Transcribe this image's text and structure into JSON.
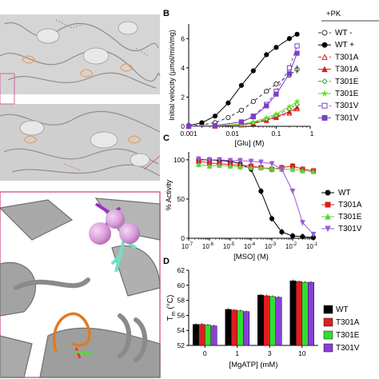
{
  "panel_letters": {
    "b": "B",
    "c": "C",
    "d": "D"
  },
  "chart_data": [
    {
      "id": "B",
      "type": "line",
      "x_scale": "log",
      "xlabel": "[Glu] (M)",
      "ylabel": "Initial velocity (µmol/min/mg)",
      "xlim": [
        0.001,
        0.6
      ],
      "ylim": [
        0,
        7
      ],
      "xticks": [
        {
          "v": 0.001,
          "label": "0.001"
        },
        {
          "v": 0.01,
          "label": "0.01"
        },
        {
          "v": 0.1,
          "label": "0.1"
        },
        {
          "v": 1,
          "label": "1"
        }
      ],
      "yticks": [
        {
          "v": 0,
          "label": "0"
        },
        {
          "v": 2,
          "label": "2"
        },
        {
          "v": 4,
          "label": "4"
        },
        {
          "v": 6,
          "label": "6"
        }
      ],
      "legend_header": "+PK",
      "series": [
        {
          "name": "WT -",
          "color": "#333333",
          "marker": "circle-open",
          "dash": "4,3",
          "x": [
            0.001,
            0.002,
            0.004,
            0.008,
            0.016,
            0.03,
            0.06,
            0.1,
            0.2,
            0.3
          ],
          "y": [
            0.02,
            0.1,
            0.25,
            0.6,
            1.1,
            1.7,
            2.4,
            2.9,
            3.5,
            3.9
          ]
        },
        {
          "name": "WT +",
          "color": "#000000",
          "marker": "circle-filled",
          "dash": "",
          "x": [
            0.001,
            0.002,
            0.004,
            0.008,
            0.016,
            0.03,
            0.06,
            0.1,
            0.2,
            0.3
          ],
          "y": [
            0.05,
            0.25,
            0.7,
            1.6,
            2.8,
            3.8,
            4.9,
            5.4,
            6.0,
            6.3
          ]
        },
        {
          "name": "T301A",
          "color": "#d42020",
          "marker": "triangle-open",
          "dash": "4,3",
          "x": [
            0.001,
            0.004,
            0.016,
            0.03,
            0.06,
            0.1,
            0.2,
            0.3
          ],
          "y": [
            0.0,
            0.02,
            0.1,
            0.2,
            0.4,
            0.6,
            0.9,
            1.2
          ]
        },
        {
          "name": "T301A",
          "color": "#d42020",
          "marker": "triangle-filled",
          "dash": "",
          "x": [
            0.001,
            0.004,
            0.016,
            0.03,
            0.06,
            0.1,
            0.2,
            0.3
          ],
          "y": [
            0.0,
            0.02,
            0.1,
            0.22,
            0.42,
            0.65,
            1.0,
            1.3
          ]
        },
        {
          "name": "T301E",
          "color": "#2e9e2e",
          "marker": "diamond-open",
          "dash": "4,3",
          "x": [
            0.001,
            0.004,
            0.016,
            0.03,
            0.06,
            0.1,
            0.2,
            0.3
          ],
          "y": [
            0.0,
            0.02,
            0.12,
            0.25,
            0.5,
            0.75,
            1.2,
            1.5
          ]
        },
        {
          "name": "T301E",
          "color": "#66dd22",
          "marker": "star",
          "dash": "",
          "x": [
            0.001,
            0.004,
            0.016,
            0.03,
            0.06,
            0.1,
            0.2,
            0.3
          ],
          "y": [
            0.0,
            0.03,
            0.15,
            0.3,
            0.58,
            0.85,
            1.35,
            1.7
          ]
        },
        {
          "name": "T301V",
          "color": "#7b3fc8",
          "marker": "square-open",
          "dash": "4,3",
          "x": [
            0.001,
            0.004,
            0.016,
            0.03,
            0.06,
            0.1,
            0.2,
            0.3
          ],
          "y": [
            0.0,
            0.05,
            0.3,
            0.7,
            1.5,
            2.4,
            4.0,
            5.5
          ]
        },
        {
          "name": "T301V",
          "color": "#7b3fc8",
          "marker": "square-filled",
          "dash": "",
          "x": [
            0.001,
            0.004,
            0.016,
            0.03,
            0.06,
            0.1,
            0.2,
            0.3
          ],
          "y": [
            0.0,
            0.05,
            0.3,
            0.65,
            1.4,
            2.2,
            3.6,
            5.0
          ]
        }
      ]
    },
    {
      "id": "C",
      "type": "line",
      "x_scale": "log",
      "xlabel": "[MSO] (M)",
      "ylabel": "% Activity",
      "xlim": [
        1e-07,
        0.1
      ],
      "ylim": [
        0,
        110
      ],
      "xticks": [
        {
          "v": 1e-07,
          "base": "10",
          "exp": "-7"
        },
        {
          "v": 1e-06,
          "base": "10",
          "exp": "-6"
        },
        {
          "v": 1e-05,
          "base": "10",
          "exp": "-5"
        },
        {
          "v": 0.0001,
          "base": "10",
          "exp": "-4"
        },
        {
          "v": 0.001,
          "base": "10",
          "exp": "-3"
        },
        {
          "v": 0.01,
          "base": "10",
          "exp": "-2"
        },
        {
          "v": 0.1,
          "base": "10",
          "exp": "-1"
        }
      ],
      "yticks": [
        {
          "v": 0,
          "label": "0"
        },
        {
          "v": 50,
          "label": "50"
        },
        {
          "v": 100,
          "label": "100"
        }
      ],
      "series": [
        {
          "name": "WT",
          "color": "#000000",
          "marker": "circle-filled",
          "x": [
            3e-07,
            1e-06,
            3e-06,
            1e-05,
            3e-05,
            0.0001,
            0.0003,
            0.001,
            0.003,
            0.01,
            0.03,
            0.1
          ],
          "y": [
            100,
            100,
            99,
            98,
            95,
            88,
            60,
            25,
            8,
            3,
            2,
            1
          ]
        },
        {
          "name": "T301A",
          "color": "#d42020",
          "marker": "square-filled",
          "x": [
            3e-07,
            1e-06,
            3e-06,
            1e-05,
            3e-05,
            0.0001,
            0.0003,
            0.001,
            0.003,
            0.01,
            0.03,
            0.1
          ],
          "y": [
            98,
            96,
            95,
            94,
            93,
            92,
            90,
            88,
            90,
            92,
            88,
            86
          ]
        },
        {
          "name": "T301E",
          "color": "#5fcf3a",
          "marker": "triangle-filled",
          "x": [
            3e-07,
            1e-06,
            3e-06,
            1e-05,
            3e-05,
            0.0001,
            0.0003,
            0.001,
            0.003,
            0.01,
            0.03,
            0.1
          ],
          "y": [
            94,
            92,
            93,
            92,
            91,
            90,
            90,
            89,
            88,
            88,
            86,
            85
          ]
        },
        {
          "name": "T301V",
          "color": "#9a5ad8",
          "marker": "triangle-down",
          "x": [
            3e-07,
            1e-06,
            3e-06,
            1e-05,
            3e-05,
            0.0001,
            0.0003,
            0.001,
            0.003,
            0.01,
            0.03,
            0.1
          ],
          "y": [
            101,
            100,
            100,
            99,
            99,
            98,
            97,
            95,
            88,
            60,
            20,
            5
          ]
        }
      ]
    },
    {
      "id": "D",
      "type": "bar",
      "xlabel": "[MgATP] (mM)",
      "ylabel_main": "T",
      "ylabel_sub": "m",
      "ylabel_unit": " (°C)",
      "ylim": [
        52,
        62
      ],
      "yticks": [
        {
          "v": 52,
          "label": "52"
        },
        {
          "v": 54,
          "label": "54"
        },
        {
          "v": 56,
          "label": "56"
        },
        {
          "v": 58,
          "label": "58"
        },
        {
          "v": 60,
          "label": "60"
        },
        {
          "v": 62,
          "label": "62"
        }
      ],
      "categories": [
        "0",
        "1",
        "3",
        "10"
      ],
      "series": [
        {
          "name": "WT",
          "color": "#000000",
          "values": [
            54.8,
            56.8,
            58.7,
            60.6
          ]
        },
        {
          "name": "T301A",
          "color": "#e11d1d",
          "values": [
            54.8,
            56.7,
            58.6,
            60.5
          ]
        },
        {
          "name": "T301E",
          "color": "#33dd33",
          "values": [
            54.7,
            56.6,
            58.5,
            60.4
          ]
        },
        {
          "name": "T301V",
          "color": "#8a3fd8",
          "values": [
            54.6,
            56.5,
            58.4,
            60.4
          ]
        }
      ]
    }
  ]
}
